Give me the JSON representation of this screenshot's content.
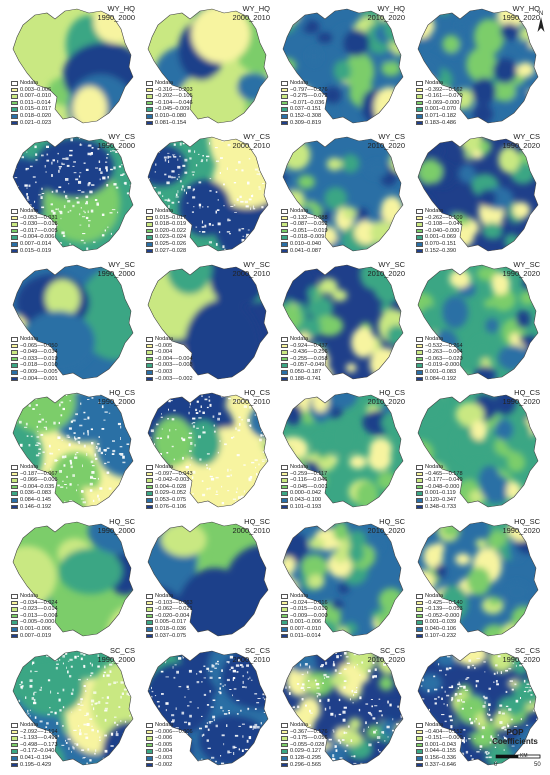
{
  "palette": [
    "#f7f4a0",
    "#c9e882",
    "#7ccd6a",
    "#3ba684",
    "#2a6fa5",
    "#1f3f8a"
  ],
  "panels": [
    {
      "key": "WY_HQ",
      "period": "1990_2000",
      "nodata": "Nodata",
      "classes": [
        "0.003–0.006",
        "0.007–0.010",
        "0.011–0.014",
        "0.015–0.017",
        "0.018–0.020",
        "0.021–0.023"
      ]
    },
    {
      "key": "WY_HQ",
      "period": "2000_2010",
      "nodata": "Nodata",
      "classes": [
        "−0.316–−0.203",
        "−0.202–−0.105",
        "−0.104–−0.046",
        "−0.045–0.009",
        "0.010–0.080",
        "0.081–0.154"
      ]
    },
    {
      "key": "WY_HQ",
      "period": "2010_2020",
      "nodata": "Nodata",
      "classes": [
        "−0.797–−0.276",
        "−0.275–−0.072",
        "−0.071–0.036",
        "0.037–0.151",
        "0.152–0.308",
        "0.309–0.819"
      ]
    },
    {
      "key": "WY_HQ",
      "period": "1990_2020",
      "nodata": "Nodata",
      "classes": [
        "−0.392–−0.162",
        "−0.161–−0.070",
        "−0.069–0.000",
        "0.001–0.070",
        "0.071–0.182",
        "0.183–0.486"
      ]
    },
    {
      "key": "WY_CS",
      "period": "1990_2000",
      "nodata": "Nodata",
      "classes": [
        "−0.053–−0.031",
        "−0.030–−0.018",
        "−0.017–−0.005",
        "−0.004–0.006",
        "0.007–0.014",
        "0.015–0.019"
      ]
    },
    {
      "key": "WY_CS",
      "period": "2000_2010",
      "nodata": "Nodata",
      "classes": [
        "0.015–0.017",
        "0.018–0.019",
        "0.020–0.022",
        "0.023–0.024",
        "0.025–0.026",
        "0.027–0.028"
      ]
    },
    {
      "key": "WY_CS",
      "period": "2010_2020",
      "nodata": "Nodata",
      "classes": [
        "−0.132–−0.088",
        "−0.087–−0.052",
        "−0.051–−0.019",
        "−0.018–0.009",
        "0.010–0.040",
        "0.041–0.087"
      ]
    },
    {
      "key": "WY_CS",
      "period": "1990_2020",
      "nodata": "Nodata",
      "classes": [
        "−0.262–−0.109",
        "−0.108–−0.041",
        "−0.040–0.000",
        "0.001–0.069",
        "0.070–0.151",
        "0.152–0.390"
      ]
    },
    {
      "key": "WY_SC",
      "period": "1990_2000",
      "nodata": "Nodata",
      "classes": [
        "−0.065–−0.050",
        "−0.049–−0.034",
        "−0.033–−0.019",
        "−0.018–−0.010",
        "−0.009–−0.005",
        "−0.004–−0.001"
      ]
    },
    {
      "key": "WY_SC",
      "period": "2000_2010",
      "nodata": "Nodata",
      "classes": [
        "−0.005",
        "−0.004",
        "−0.004–−0.004",
        "−0.003–−0.003",
        "−0.003",
        "−0.003–−0.002"
      ]
    },
    {
      "key": "WY_SC",
      "period": "2010_2020",
      "nodata": "Nodata",
      "classes": [
        "−0.924–−0.437",
        "−0.436–−0.256",
        "−0.255–−0.058",
        "−0.057–0.049",
        "0.050–0.187",
        "0.188–0.741"
      ]
    },
    {
      "key": "WY_SC",
      "period": "1990_2020",
      "nodata": "Nodata",
      "classes": [
        "−0.532–−0.264",
        "−0.263–−0.064",
        "−0.063–−0.020",
        "−0.019–0.000",
        "0.001–0.083",
        "0.084–0.192"
      ]
    },
    {
      "key": "HQ_CS",
      "period": "1990_2000",
      "nodata": "Nodata",
      "classes": [
        "−0.187–−0.067",
        "−0.066–−0.005",
        "−0.004–0.035",
        "0.036–0.083",
        "0.084–0.145",
        "0.146–0.192"
      ]
    },
    {
      "key": "HQ_CS",
      "period": "2000_2010",
      "nodata": "Nodata",
      "classes": [
        "−0.097–−0.043",
        "−0.042–0.003",
        "0.004–0.028",
        "0.029–0.052",
        "0.053–0.075",
        "0.076–0.106"
      ]
    },
    {
      "key": "HQ_CS",
      "period": "2010_2020",
      "nodata": "Nodata",
      "classes": [
        "−0.259–−0.117",
        "−0.116–−0.046",
        "−0.045–−0.001",
        "0.000–0.042",
        "0.043–0.100",
        "0.101–0.193"
      ]
    },
    {
      "key": "HQ_CS",
      "period": "1990_2020",
      "nodata": "Nodata",
      "classes": [
        "−0.465–−0.178",
        "−0.177–−0.049",
        "−0.048–0.000",
        "0.001–0.119",
        "0.120–0.347",
        "0.348–0.733"
      ]
    },
    {
      "key": "HQ_SC",
      "period": "1990_2000",
      "nodata": "Nodata",
      "classes": [
        "−0.034–−0.024",
        "−0.023–−0.014",
        "−0.013–−0.006",
        "−0.005–0.000",
        "0.001–0.006",
        "0.007–0.019"
      ]
    },
    {
      "key": "HQ_SC",
      "period": "2000_2010",
      "nodata": "Nodata",
      "classes": [
        "−0.103–−0.063",
        "−0.062–−0.021",
        "−0.020–0.004",
        "0.005–0.017",
        "0.018–0.036",
        "0.037–0.075"
      ]
    },
    {
      "key": "HQ_SC",
      "period": "2010_2020",
      "nodata": "Nodata",
      "classes": [
        "−0.024–−0.016",
        "−0.015–−0.010",
        "−0.009–−0.000",
        "0.001–0.006",
        "0.007–0.010",
        "0.011–0.014"
      ]
    },
    {
      "key": "HQ_SC",
      "period": "1990_2020",
      "nodata": "Nodata",
      "classes": [
        "−0.425–−0.140",
        "−0.139–−0.053",
        "−0.052–0.000",
        "0.001–0.039",
        "0.040–0.106",
        "0.107–0.232"
      ]
    },
    {
      "key": "SC_CS",
      "period": "1990_2000",
      "nodata": "Nodata",
      "classes": [
        "−2.092–−1.194",
        "−1.193–−0.499",
        "−0.498–−0.173",
        "−0.172–0.040",
        "0.041–0.194",
        "0.195–0.429"
      ]
    },
    {
      "key": "SC_CS",
      "period": "2000_2010",
      "nodata": "Nodata",
      "classes": [
        "−0.006–−0.006",
        "−0.006",
        "−0.005",
        "−0.004",
        "−0.003",
        "−0.002"
      ]
    },
    {
      "key": "SC_CS",
      "period": "2010_2020",
      "nodata": "Nodata",
      "classes": [
        "−0.367–−0.176",
        "−0.175–−0.056",
        "−0.055–0.028",
        "0.029–0.127",
        "0.128–0.295",
        "0.296–0.565"
      ]
    },
    {
      "key": "SC_CS",
      "period": "1990_2020",
      "nodata": "Nodata",
      "classes": [
        "−0.404–−0.152",
        "−0.151–−0.000",
        "0.001–0.043",
        "0.044–0.155",
        "0.156–0.336",
        "0.337–0.646"
      ]
    }
  ],
  "north_label": "N",
  "coef_label_1": "POP",
  "coef_label_2": "Coefficients",
  "scale": {
    "start": "0",
    "end": "50",
    "unit": "KM"
  },
  "icons": {
    "north": "north-arrow-icon",
    "scale": "scale-bar-icon"
  }
}
